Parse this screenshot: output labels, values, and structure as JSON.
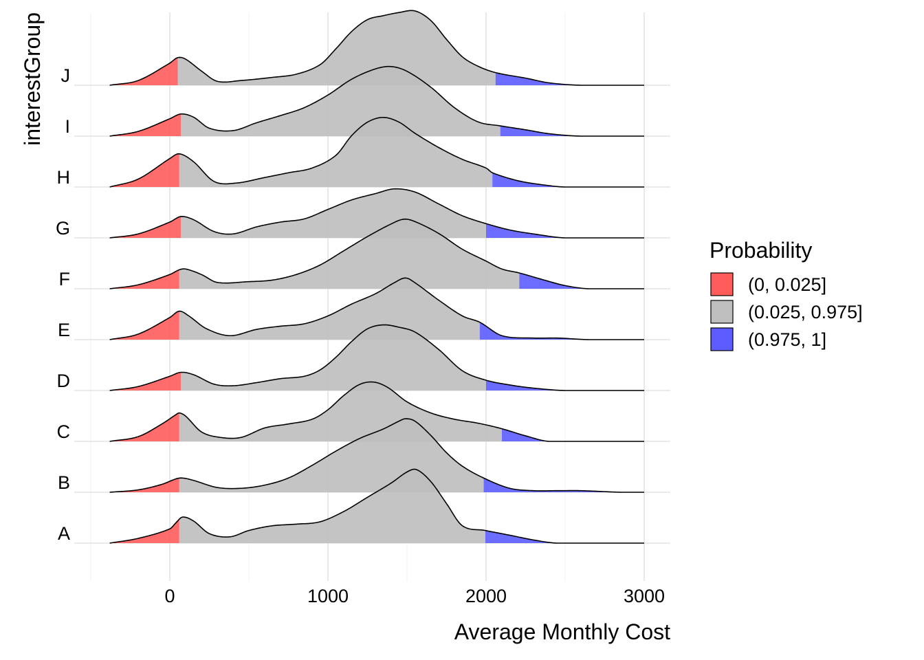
{
  "chart_data": {
    "type": "ridgeline density",
    "xlabel": "Average Monthly Cost",
    "ylabel": "interestGroup",
    "xlim": [
      -380,
      3150
    ],
    "x_ticks": [
      0,
      1000,
      2000,
      3000
    ],
    "x_tick_labels": [
      "0",
      "1000",
      "2000",
      "3000"
    ],
    "grid": true,
    "legend": {
      "title": "Probability",
      "position": "right",
      "entries": [
        {
          "label": "(0, 0.025]",
          "color": "#ff5c5c"
        },
        {
          "label": "(0.025, 0.975]",
          "color": "#bebebe"
        },
        {
          "label": "(0.975, 1]",
          "color": "#5c5cff"
        }
      ]
    },
    "groups": [
      {
        "name": "A",
        "range": [
          -380,
          3000
        ],
        "lower_cut": 60,
        "upper_cut": 1995,
        "curve": [
          [
            -380,
            0
          ],
          [
            -200,
            0.06
          ],
          [
            0,
            0.18
          ],
          [
            40,
            0.26
          ],
          [
            80,
            0.33
          ],
          [
            150,
            0.28
          ],
          [
            250,
            0.12
          ],
          [
            380,
            0.08
          ],
          [
            500,
            0.16
          ],
          [
            650,
            0.22
          ],
          [
            800,
            0.24
          ],
          [
            950,
            0.27
          ],
          [
            1100,
            0.4
          ],
          [
            1250,
            0.58
          ],
          [
            1400,
            0.76
          ],
          [
            1500,
            0.9
          ],
          [
            1560,
            0.93
          ],
          [
            1650,
            0.78
          ],
          [
            1750,
            0.5
          ],
          [
            1850,
            0.22
          ],
          [
            1995,
            0.16
          ],
          [
            2150,
            0.1
          ],
          [
            2300,
            0.04
          ],
          [
            2450,
            0
          ],
          [
            3000,
            0
          ]
        ]
      },
      {
        "name": "B",
        "range": [
          -380,
          3000
        ],
        "lower_cut": 60,
        "upper_cut": 1985,
        "curve": [
          [
            -380,
            0
          ],
          [
            -200,
            0.03
          ],
          [
            -50,
            0.1
          ],
          [
            40,
            0.17
          ],
          [
            80,
            0.18
          ],
          [
            150,
            0.15
          ],
          [
            300,
            0.06
          ],
          [
            450,
            0.05
          ],
          [
            600,
            0.09
          ],
          [
            750,
            0.18
          ],
          [
            900,
            0.34
          ],
          [
            1050,
            0.52
          ],
          [
            1200,
            0.68
          ],
          [
            1350,
            0.8
          ],
          [
            1450,
            0.9
          ],
          [
            1490,
            0.93
          ],
          [
            1550,
            0.9
          ],
          [
            1650,
            0.72
          ],
          [
            1750,
            0.5
          ],
          [
            1850,
            0.33
          ],
          [
            1985,
            0.18
          ],
          [
            2150,
            0.05
          ],
          [
            2300,
            0.02
          ],
          [
            2450,
            0.02
          ],
          [
            2600,
            0.02
          ],
          [
            2850,
            0
          ],
          [
            3000,
            0
          ]
        ]
      },
      {
        "name": "C",
        "range": [
          -380,
          3000
        ],
        "lower_cut": 60,
        "upper_cut": 2100,
        "curve": [
          [
            -380,
            0
          ],
          [
            -200,
            0.06
          ],
          [
            -50,
            0.22
          ],
          [
            40,
            0.34
          ],
          [
            60,
            0.36
          ],
          [
            100,
            0.32
          ],
          [
            200,
            0.12
          ],
          [
            320,
            0.05
          ],
          [
            450,
            0.05
          ],
          [
            600,
            0.17
          ],
          [
            750,
            0.22
          ],
          [
            900,
            0.28
          ],
          [
            1000,
            0.4
          ],
          [
            1100,
            0.58
          ],
          [
            1200,
            0.72
          ],
          [
            1290,
            0.75
          ],
          [
            1380,
            0.68
          ],
          [
            1500,
            0.5
          ],
          [
            1650,
            0.36
          ],
          [
            1800,
            0.28
          ],
          [
            1950,
            0.23
          ],
          [
            2100,
            0.16
          ],
          [
            2250,
            0.07
          ],
          [
            2400,
            0
          ],
          [
            3000,
            0
          ]
        ]
      },
      {
        "name": "D",
        "range": [
          -380,
          3000
        ],
        "lower_cut": 70,
        "upper_cut": 2000,
        "curve": [
          [
            -380,
            0
          ],
          [
            -200,
            0.05
          ],
          [
            0,
            0.18
          ],
          [
            70,
            0.23
          ],
          [
            150,
            0.2
          ],
          [
            280,
            0.08
          ],
          [
            400,
            0.06
          ],
          [
            550,
            0.1
          ],
          [
            700,
            0.15
          ],
          [
            850,
            0.18
          ],
          [
            950,
            0.26
          ],
          [
            1050,
            0.42
          ],
          [
            1150,
            0.62
          ],
          [
            1250,
            0.78
          ],
          [
            1350,
            0.83
          ],
          [
            1450,
            0.8
          ],
          [
            1550,
            0.74
          ],
          [
            1700,
            0.52
          ],
          [
            1850,
            0.25
          ],
          [
            2000,
            0.13
          ],
          [
            2150,
            0.07
          ],
          [
            2300,
            0.03
          ],
          [
            2500,
            0
          ],
          [
            3000,
            0
          ]
        ]
      },
      {
        "name": "E",
        "range": [
          -380,
          3000
        ],
        "lower_cut": 60,
        "upper_cut": 1960,
        "curve": [
          [
            -380,
            0
          ],
          [
            -200,
            0.07
          ],
          [
            0,
            0.28
          ],
          [
            60,
            0.36
          ],
          [
            120,
            0.3
          ],
          [
            230,
            0.14
          ],
          [
            380,
            0.05
          ],
          [
            550,
            0.13
          ],
          [
            700,
            0.17
          ],
          [
            850,
            0.2
          ],
          [
            1000,
            0.3
          ],
          [
            1150,
            0.45
          ],
          [
            1300,
            0.58
          ],
          [
            1420,
            0.72
          ],
          [
            1490,
            0.78
          ],
          [
            1550,
            0.72
          ],
          [
            1700,
            0.5
          ],
          [
            1850,
            0.3
          ],
          [
            1960,
            0.22
          ],
          [
            2100,
            0.05
          ],
          [
            2300,
            0.02
          ],
          [
            2450,
            0.02
          ],
          [
            2650,
            0
          ],
          [
            3000,
            0
          ]
        ]
      },
      {
        "name": "F",
        "range": [
          -380,
          3000
        ],
        "lower_cut": 60,
        "upper_cut": 2210,
        "curve": [
          [
            -380,
            0
          ],
          [
            -200,
            0.05
          ],
          [
            0,
            0.18
          ],
          [
            60,
            0.24
          ],
          [
            100,
            0.25
          ],
          [
            200,
            0.18
          ],
          [
            300,
            0.08
          ],
          [
            500,
            0.09
          ],
          [
            650,
            0.11
          ],
          [
            800,
            0.18
          ],
          [
            950,
            0.3
          ],
          [
            1100,
            0.48
          ],
          [
            1250,
            0.66
          ],
          [
            1400,
            0.82
          ],
          [
            1480,
            0.88
          ],
          [
            1550,
            0.85
          ],
          [
            1700,
            0.7
          ],
          [
            1850,
            0.5
          ],
          [
            2000,
            0.35
          ],
          [
            2100,
            0.25
          ],
          [
            2210,
            0.2
          ],
          [
            2350,
            0.12
          ],
          [
            2500,
            0.04
          ],
          [
            2650,
            0
          ],
          [
            3000,
            0
          ]
        ]
      },
      {
        "name": "G",
        "range": [
          -380,
          3000
        ],
        "lower_cut": 70,
        "upper_cut": 2000,
        "curve": [
          [
            -380,
            0
          ],
          [
            -200,
            0.05
          ],
          [
            0,
            0.2
          ],
          [
            70,
            0.27
          ],
          [
            150,
            0.23
          ],
          [
            280,
            0.08
          ],
          [
            400,
            0.05
          ],
          [
            550,
            0.14
          ],
          [
            700,
            0.2
          ],
          [
            850,
            0.24
          ],
          [
            1000,
            0.36
          ],
          [
            1150,
            0.48
          ],
          [
            1300,
            0.56
          ],
          [
            1420,
            0.62
          ],
          [
            1550,
            0.58
          ],
          [
            1700,
            0.43
          ],
          [
            1850,
            0.28
          ],
          [
            2000,
            0.18
          ],
          [
            2150,
            0.1
          ],
          [
            2300,
            0.05
          ],
          [
            2500,
            0
          ],
          [
            3000,
            0
          ]
        ]
      },
      {
        "name": "H",
        "range": [
          -380,
          3000
        ],
        "lower_cut": 60,
        "upper_cut": 2040,
        "curve": [
          [
            -380,
            0
          ],
          [
            -200,
            0.1
          ],
          [
            0,
            0.36
          ],
          [
            60,
            0.42
          ],
          [
            150,
            0.32
          ],
          [
            280,
            0.07
          ],
          [
            420,
            0.05
          ],
          [
            600,
            0.12
          ],
          [
            750,
            0.18
          ],
          [
            900,
            0.24
          ],
          [
            1050,
            0.4
          ],
          [
            1150,
            0.65
          ],
          [
            1250,
            0.82
          ],
          [
            1350,
            0.88
          ],
          [
            1450,
            0.82
          ],
          [
            1550,
            0.68
          ],
          [
            1700,
            0.5
          ],
          [
            1850,
            0.35
          ],
          [
            2000,
            0.24
          ],
          [
            2040,
            0.18
          ],
          [
            2200,
            0.08
          ],
          [
            2350,
            0.03
          ],
          [
            2500,
            0
          ],
          [
            3000,
            0
          ]
        ]
      },
      {
        "name": "I",
        "range": [
          -380,
          3000
        ],
        "lower_cut": 70,
        "upper_cut": 2090,
        "curve": [
          [
            -380,
            0
          ],
          [
            -200,
            0.06
          ],
          [
            0,
            0.22
          ],
          [
            70,
            0.28
          ],
          [
            150,
            0.24
          ],
          [
            250,
            0.1
          ],
          [
            400,
            0.07
          ],
          [
            550,
            0.17
          ],
          [
            700,
            0.26
          ],
          [
            850,
            0.36
          ],
          [
            1000,
            0.52
          ],
          [
            1150,
            0.72
          ],
          [
            1300,
            0.85
          ],
          [
            1400,
            0.88
          ],
          [
            1500,
            0.82
          ],
          [
            1650,
            0.62
          ],
          [
            1800,
            0.36
          ],
          [
            1950,
            0.18
          ],
          [
            2090,
            0.13
          ],
          [
            2250,
            0.08
          ],
          [
            2400,
            0.03
          ],
          [
            2600,
            0
          ],
          [
            3000,
            0
          ]
        ]
      },
      {
        "name": "J",
        "range": [
          -380,
          3000
        ],
        "lower_cut": 50,
        "upper_cut": 2060,
        "curve": [
          [
            -380,
            0
          ],
          [
            -200,
            0.06
          ],
          [
            0,
            0.28
          ],
          [
            50,
            0.35
          ],
          [
            100,
            0.33
          ],
          [
            200,
            0.18
          ],
          [
            300,
            0.05
          ],
          [
            450,
            0.06
          ],
          [
            650,
            0.1
          ],
          [
            800,
            0.14
          ],
          [
            950,
            0.26
          ],
          [
            1050,
            0.46
          ],
          [
            1150,
            0.68
          ],
          [
            1250,
            0.83
          ],
          [
            1350,
            0.88
          ],
          [
            1450,
            0.92
          ],
          [
            1550,
            0.94
          ],
          [
            1650,
            0.82
          ],
          [
            1750,
            0.58
          ],
          [
            1850,
            0.36
          ],
          [
            1950,
            0.24
          ],
          [
            2060,
            0.16
          ],
          [
            2250,
            0.09
          ],
          [
            2400,
            0.03
          ],
          [
            2600,
            0
          ],
          [
            3000,
            0
          ]
        ]
      }
    ]
  }
}
